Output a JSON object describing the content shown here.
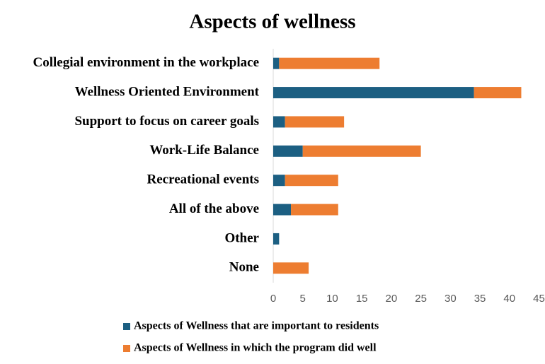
{
  "chart_data": {
    "type": "stacked-bar-horizontal",
    "title": "Aspects of wellness",
    "categories": [
      "Collegial environment in the workplace",
      "Wellness Oriented Environment",
      "Support to focus on career goals",
      "Work-Life Balance",
      "Recreational events",
      "All of the above",
      "Other",
      "None"
    ],
    "series": [
      {
        "name": "Aspects of Wellness that are important to residents",
        "color": "#1c5f82",
        "values": [
          1,
          34,
          2,
          5,
          2,
          3,
          1,
          0
        ]
      },
      {
        "name": "Aspects of Wellness in which the program did well",
        "color": "#ed7d31",
        "values": [
          17,
          8,
          10,
          20,
          9,
          8,
          0,
          6
        ]
      }
    ],
    "xlim": [
      0,
      45
    ],
    "xticks": [
      0,
      5,
      10,
      15,
      20,
      25,
      30,
      35,
      40,
      45
    ],
    "grid": false,
    "legend": "bottom"
  }
}
